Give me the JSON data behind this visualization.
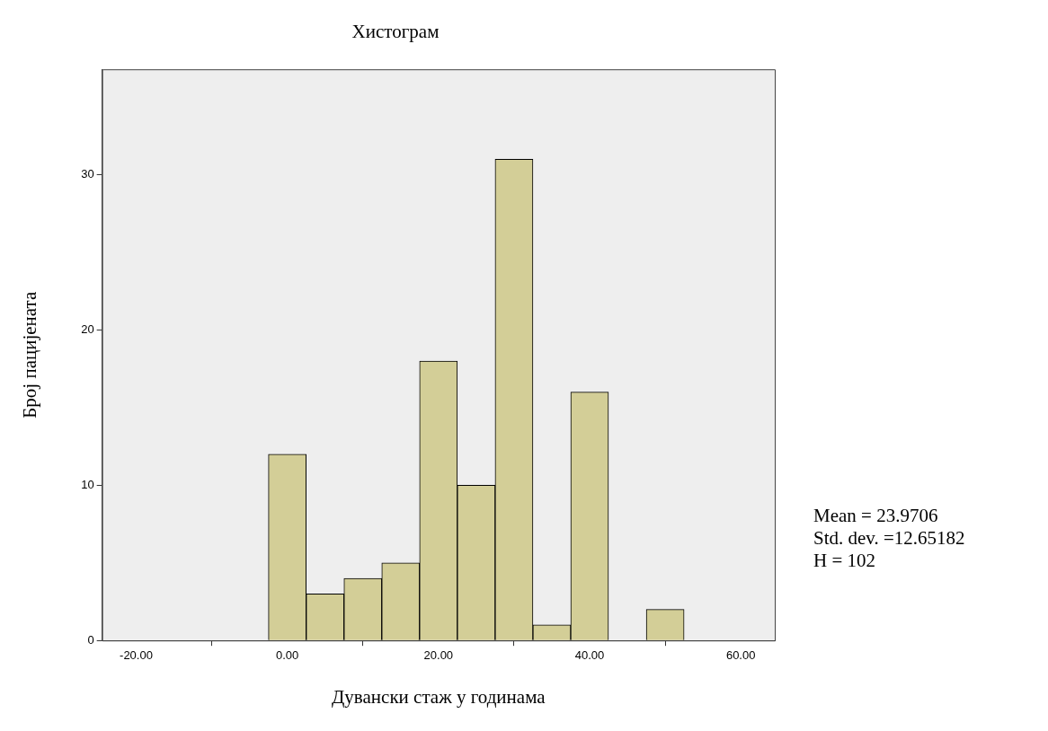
{
  "chart_data": {
    "type": "histogram",
    "title": "Хистограм",
    "xlabel": "Дувански стаж у годинама",
    "ylabel": "Број пацијената",
    "bins": [
      -2.5,
      2.5,
      7.5,
      12.5,
      17.5,
      22.5,
      27.5,
      32.5,
      37.5,
      42.5,
      47.5,
      52.5
    ],
    "values": [
      12,
      3,
      4,
      5,
      18,
      10,
      31,
      1,
      16,
      0,
      2
    ],
    "color": "#d3ce97",
    "xlim": [
      -24.5,
      64.5
    ],
    "xticks": [
      {
        "value": -20,
        "label": "-20.00"
      },
      {
        "value": 0,
        "label": "0.00"
      },
      {
        "value": 20,
        "label": "20.00"
      },
      {
        "value": 40,
        "label": "40.00"
      },
      {
        "value": 60,
        "label": "60.00"
      }
    ],
    "ylim": [
      0,
      36.8
    ],
    "yticks": [
      0,
      10,
      20,
      30
    ],
    "grid": false,
    "annotations": [
      "Mean = 23.9706",
      "Std. dev. =12.65182",
      "H = 102"
    ]
  }
}
